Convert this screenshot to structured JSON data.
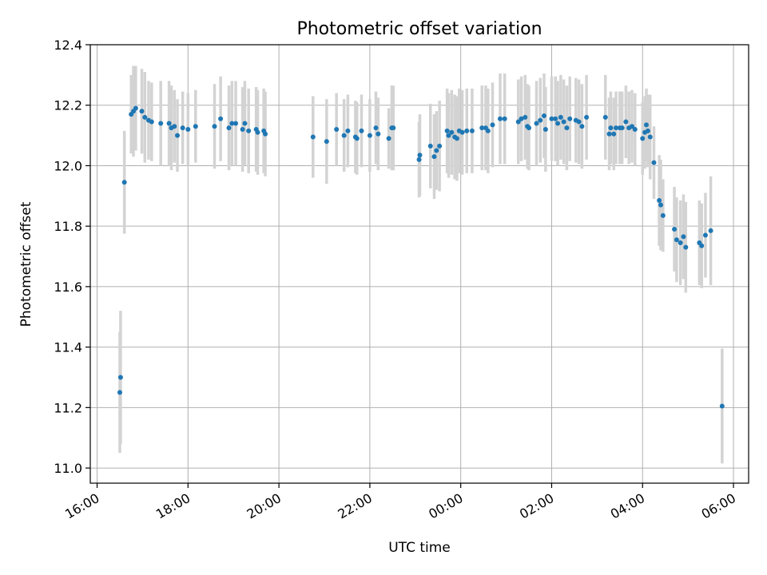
{
  "chart_data": {
    "type": "scatter",
    "title": "Photometric offset variation",
    "xlabel": "UTC time",
    "ylabel": "Photometric offset",
    "x_tick_labels": [
      "16:00",
      "18:00",
      "20:00",
      "22:00",
      "00:00",
      "02:00",
      "04:00",
      "06:00"
    ],
    "x_tick_hours": [
      16,
      18,
      20,
      22,
      24,
      26,
      28,
      30
    ],
    "y_tick_labels": [
      "11.0",
      "11.2",
      "11.4",
      "11.6",
      "11.8",
      "12.0",
      "12.2",
      "12.4"
    ],
    "y_tick_values": [
      11.0,
      11.2,
      11.4,
      11.6,
      11.8,
      12.0,
      12.2,
      12.4
    ],
    "xlim": [
      "15:51",
      "06:20"
    ],
    "ylim": [
      10.95,
      12.4
    ],
    "grid": true,
    "colors": {
      "marker": "#1f77b4",
      "errorbar": "#d3d3d3",
      "grid": "#b0b0b0"
    },
    "points": [
      {
        "t": "16:30",
        "y": 11.25,
        "err": 0.2
      },
      {
        "t": "16:31",
        "y": 11.3,
        "err": 0.22
      },
      {
        "t": "16:36",
        "y": 11.945,
        "err": 0.17
      },
      {
        "t": "16:45",
        "y": 12.17,
        "err": 0.13
      },
      {
        "t": "16:48",
        "y": 12.18,
        "err": 0.15
      },
      {
        "t": "16:51",
        "y": 12.19,
        "err": 0.14
      },
      {
        "t": "16:59",
        "y": 12.18,
        "err": 0.14
      },
      {
        "t": "17:03",
        "y": 12.16,
        "err": 0.15
      },
      {
        "t": "17:08",
        "y": 12.15,
        "err": 0.13
      },
      {
        "t": "17:12",
        "y": 12.145,
        "err": 0.13
      },
      {
        "t": "17:24",
        "y": 12.14,
        "err": 0.14
      },
      {
        "t": "17:35",
        "y": 12.14,
        "err": 0.14
      },
      {
        "t": "17:38",
        "y": 12.125,
        "err": 0.14
      },
      {
        "t": "17:42",
        "y": 12.13,
        "err": 0.12
      },
      {
        "t": "17:46",
        "y": 12.1,
        "err": 0.12
      },
      {
        "t": "17:53",
        "y": 12.125,
        "err": 0.12
      },
      {
        "t": "18:00",
        "y": 12.12,
        "err": 0.12
      },
      {
        "t": "18:10",
        "y": 12.13,
        "err": 0.12
      },
      {
        "t": "18:35",
        "y": 12.13,
        "err": 0.14
      },
      {
        "t": "18:43",
        "y": 12.155,
        "err": 0.14
      },
      {
        "t": "18:54",
        "y": 12.125,
        "err": 0.14
      },
      {
        "t": "18:58",
        "y": 12.14,
        "err": 0.14
      },
      {
        "t": "19:03",
        "y": 12.14,
        "err": 0.14
      },
      {
        "t": "19:12",
        "y": 12.12,
        "err": 0.14
      },
      {
        "t": "19:15",
        "y": 12.14,
        "err": 0.14
      },
      {
        "t": "19:20",
        "y": 12.115,
        "err": 0.14
      },
      {
        "t": "19:30",
        "y": 12.12,
        "err": 0.14
      },
      {
        "t": "19:32",
        "y": 12.11,
        "err": 0.14
      },
      {
        "t": "19:40",
        "y": 12.115,
        "err": 0.14
      },
      {
        "t": "19:42",
        "y": 12.105,
        "err": 0.14
      },
      {
        "t": "20:45",
        "y": 12.095,
        "err": 0.135
      },
      {
        "t": "21:03",
        "y": 12.08,
        "err": 0.14
      },
      {
        "t": "21:16",
        "y": 12.12,
        "err": 0.12
      },
      {
        "t": "21:26",
        "y": 12.1,
        "err": 0.12
      },
      {
        "t": "21:31",
        "y": 12.115,
        "err": 0.12
      },
      {
        "t": "21:41",
        "y": 12.095,
        "err": 0.12
      },
      {
        "t": "21:43",
        "y": 12.09,
        "err": 0.12
      },
      {
        "t": "21:49",
        "y": 12.115,
        "err": 0.12
      },
      {
        "t": "22:00",
        "y": 12.1,
        "err": 0.12
      },
      {
        "t": "22:08",
        "y": 12.125,
        "err": 0.12
      },
      {
        "t": "22:11",
        "y": 12.105,
        "err": 0.12
      },
      {
        "t": "22:25",
        "y": 12.09,
        "err": 0.1
      },
      {
        "t": "22:29",
        "y": 12.125,
        "err": 0.14
      },
      {
        "t": "22:31",
        "y": 12.125,
        "err": 0.14
      },
      {
        "t": "23:05",
        "y": 12.02,
        "err": 0.125
      },
      {
        "t": "23:06",
        "y": 12.035,
        "err": 0.135
      },
      {
        "t": "23:20",
        "y": 12.065,
        "err": 0.14
      },
      {
        "t": "23:25",
        "y": 12.03,
        "err": 0.14
      },
      {
        "t": "23:28",
        "y": 12.05,
        "err": 0.13
      },
      {
        "t": "23:32",
        "y": 12.065,
        "err": 0.15
      },
      {
        "t": "23:42",
        "y": 12.115,
        "err": 0.14
      },
      {
        "t": "23:44",
        "y": 12.1,
        "err": 0.14
      },
      {
        "t": "23:48",
        "y": 12.11,
        "err": 0.14
      },
      {
        "t": "23:52",
        "y": 12.095,
        "err": 0.14
      },
      {
        "t": "23:55",
        "y": 12.09,
        "err": 0.14
      },
      {
        "t": "23:58",
        "y": 12.115,
        "err": 0.14
      },
      {
        "t": "00:02",
        "y": 12.11,
        "err": 0.14
      },
      {
        "t": "00:08",
        "y": 12.115,
        "err": 0.14
      },
      {
        "t": "00:15",
        "y": 12.115,
        "err": 0.14
      },
      {
        "t": "00:28",
        "y": 12.125,
        "err": 0.14
      },
      {
        "t": "00:33",
        "y": 12.125,
        "err": 0.14
      },
      {
        "t": "00:36",
        "y": 12.115,
        "err": 0.14
      },
      {
        "t": "00:42",
        "y": 12.135,
        "err": 0.14
      },
      {
        "t": "00:52",
        "y": 12.155,
        "err": 0.15
      },
      {
        "t": "00:58",
        "y": 12.155,
        "err": 0.15
      },
      {
        "t": "01:16",
        "y": 12.145,
        "err": 0.14
      },
      {
        "t": "01:20",
        "y": 12.155,
        "err": 0.14
      },
      {
        "t": "01:25",
        "y": 12.16,
        "err": 0.14
      },
      {
        "t": "01:28",
        "y": 12.13,
        "err": 0.14
      },
      {
        "t": "01:30",
        "y": 12.125,
        "err": 0.14
      },
      {
        "t": "01:40",
        "y": 12.14,
        "err": 0.14
      },
      {
        "t": "01:45",
        "y": 12.15,
        "err": 0.14
      },
      {
        "t": "01:50",
        "y": 12.165,
        "err": 0.14
      },
      {
        "t": "01:52",
        "y": 12.12,
        "err": 0.14
      },
      {
        "t": "02:00",
        "y": 12.155,
        "err": 0.14
      },
      {
        "t": "02:05",
        "y": 12.155,
        "err": 0.14
      },
      {
        "t": "02:08",
        "y": 12.14,
        "err": 0.14
      },
      {
        "t": "02:12",
        "y": 12.16,
        "err": 0.14
      },
      {
        "t": "02:16",
        "y": 12.145,
        "err": 0.14
      },
      {
        "t": "02:20",
        "y": 12.125,
        "err": 0.14
      },
      {
        "t": "02:24",
        "y": 12.155,
        "err": 0.14
      },
      {
        "t": "02:32",
        "y": 12.15,
        "err": 0.14
      },
      {
        "t": "02:36",
        "y": 12.145,
        "err": 0.14
      },
      {
        "t": "02:40",
        "y": 12.13,
        "err": 0.14
      },
      {
        "t": "02:46",
        "y": 12.16,
        "err": 0.14
      },
      {
        "t": "03:11",
        "y": 12.16,
        "err": 0.14
      },
      {
        "t": "03:16",
        "y": 12.105,
        "err": 0.12
      },
      {
        "t": "03:18",
        "y": 12.125,
        "err": 0.12
      },
      {
        "t": "03:22",
        "y": 12.105,
        "err": 0.12
      },
      {
        "t": "03:25",
        "y": 12.125,
        "err": 0.12
      },
      {
        "t": "03:30",
        "y": 12.125,
        "err": 0.12
      },
      {
        "t": "03:33",
        "y": 12.125,
        "err": 0.12
      },
      {
        "t": "03:38",
        "y": 12.145,
        "err": 0.12
      },
      {
        "t": "03:42",
        "y": 12.125,
        "err": 0.12
      },
      {
        "t": "03:46",
        "y": 12.13,
        "err": 0.12
      },
      {
        "t": "03:50",
        "y": 12.12,
        "err": 0.12
      },
      {
        "t": "04:00",
        "y": 12.09,
        "err": 0.12
      },
      {
        "t": "04:03",
        "y": 12.11,
        "err": 0.12
      },
      {
        "t": "04:05",
        "y": 12.135,
        "err": 0.12
      },
      {
        "t": "04:07",
        "y": 12.115,
        "err": 0.12
      },
      {
        "t": "04:10",
        "y": 12.095,
        "err": 0.14
      },
      {
        "t": "04:15",
        "y": 12.01,
        "err": 0.12
      },
      {
        "t": "04:22",
        "y": 11.885,
        "err": 0.15
      },
      {
        "t": "04:24",
        "y": 11.87,
        "err": 0.15
      },
      {
        "t": "04:27",
        "y": 11.835,
        "err": 0.12
      },
      {
        "t": "04:42",
        "y": 11.79,
        "err": 0.14
      },
      {
        "t": "04:45",
        "y": 11.755,
        "err": 0.14
      },
      {
        "t": "04:50",
        "y": 11.745,
        "err": 0.14
      },
      {
        "t": "04:54",
        "y": 11.765,
        "err": 0.14
      },
      {
        "t": "04:57",
        "y": 11.73,
        "err": 0.15
      },
      {
        "t": "05:15",
        "y": 11.745,
        "err": 0.14
      },
      {
        "t": "05:18",
        "y": 11.735,
        "err": 0.14
      },
      {
        "t": "05:23",
        "y": 11.77,
        "err": 0.14
      },
      {
        "t": "05:30",
        "y": 11.785,
        "err": 0.18
      },
      {
        "t": "05:45",
        "y": 11.205,
        "err": 0.19
      }
    ]
  }
}
